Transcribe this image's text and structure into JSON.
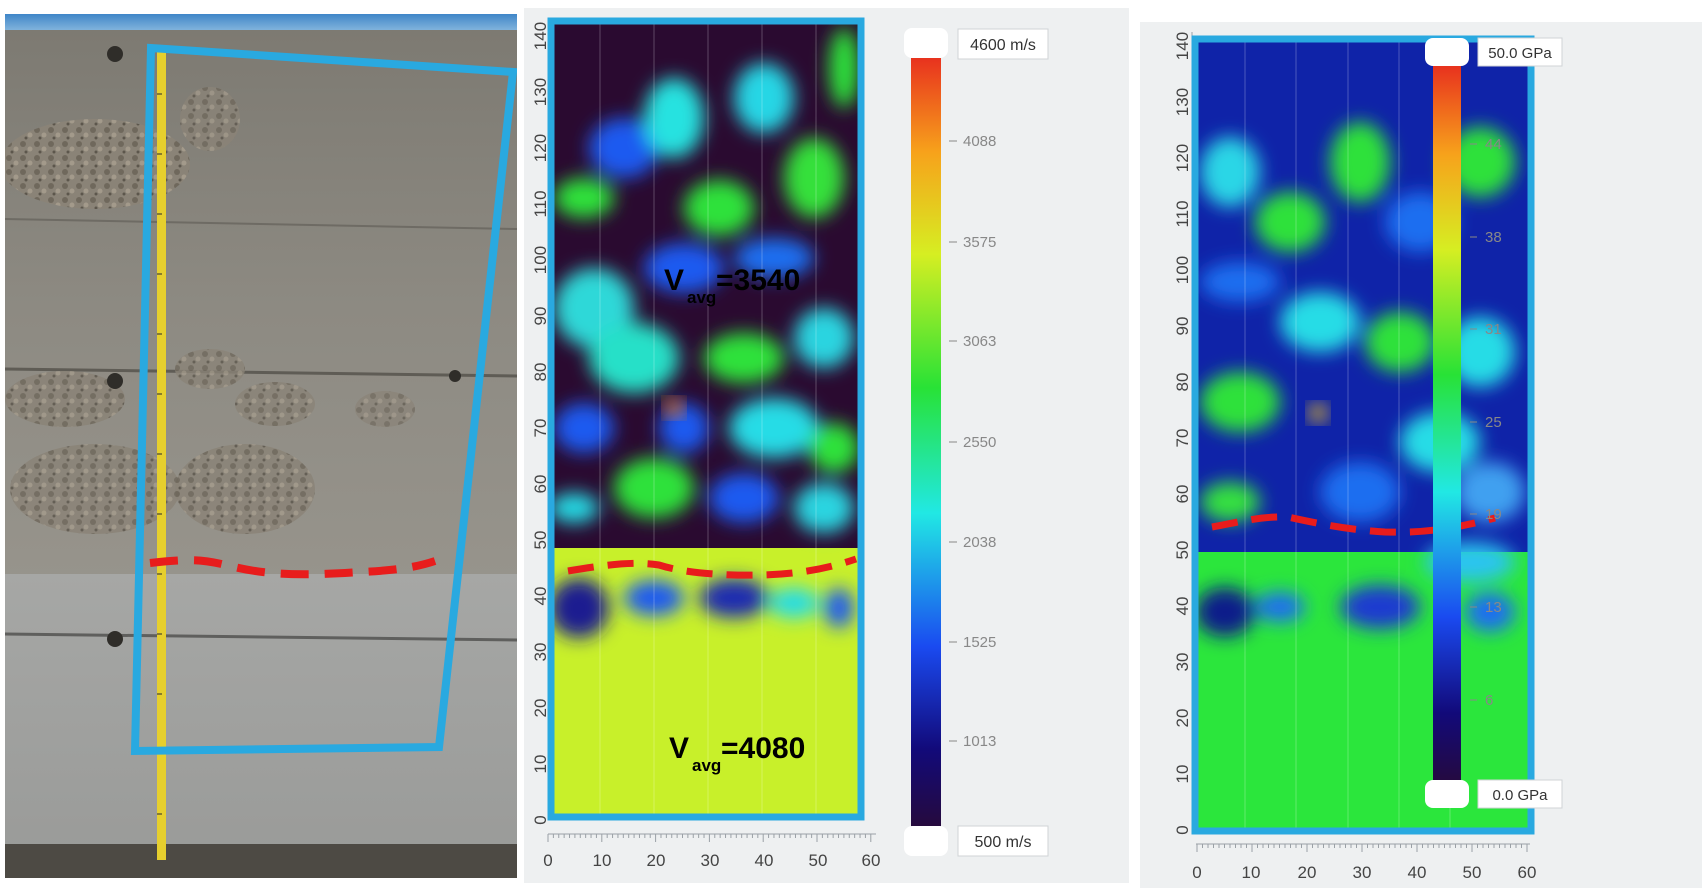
{
  "photo": {
    "tape_label": "measuring tape",
    "colors": {
      "sky": "#4a90c9",
      "concrete": "#8f8d86",
      "outline": "#29a9e0",
      "interface": "#e81c1c"
    }
  },
  "velocity_tomogram": {
    "y_ticks": [
      "0",
      "10",
      "20",
      "30",
      "40",
      "50",
      "60",
      "70",
      "80",
      "90",
      "100",
      "110",
      "120",
      "130",
      "140"
    ],
    "x_ticks": [
      "0",
      "10",
      "20",
      "30",
      "40",
      "50",
      "60"
    ],
    "annotation_upper": {
      "main": "V",
      "sub": "avg",
      "value": "=3540"
    },
    "annotation_lower": {
      "main": "V",
      "sub": "avg",
      "value": "=4080"
    },
    "colorbar": {
      "max_label": "4600 m/s",
      "min_label": "500 m/s",
      "ticks": [
        "4088",
        "3575",
        "3063",
        "2550",
        "2038",
        "1525",
        "1013"
      ]
    }
  },
  "modulus_tomogram": {
    "y_ticks": [
      "0",
      "10",
      "20",
      "30",
      "40",
      "50",
      "60",
      "70",
      "80",
      "90",
      "100",
      "110",
      "120",
      "130",
      "140"
    ],
    "x_ticks": [
      "0",
      "10",
      "20",
      "30",
      "40",
      "50",
      "60"
    ],
    "colorbar": {
      "max_label": "50.0 GPa",
      "min_label": "0.0 GPa",
      "ticks": [
        "44",
        "38",
        "31",
        "25",
        "19",
        "13",
        "6"
      ]
    }
  }
}
